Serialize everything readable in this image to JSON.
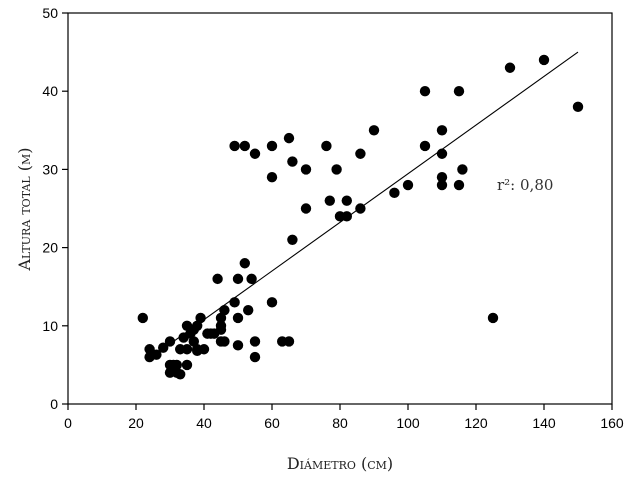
{
  "chart_data": {
    "type": "scatter",
    "title": "",
    "xlabel": "Diámetro (cm)",
    "ylabel": "Altura total (m)",
    "xlim": [
      0,
      160
    ],
    "ylim": [
      0,
      50
    ],
    "xticks": [
      0,
      20,
      40,
      60,
      80,
      100,
      120,
      140,
      160
    ],
    "yticks": [
      0,
      10,
      20,
      30,
      40,
      50
    ],
    "grid": false,
    "annotation": "r²: 0,80",
    "fit_line": {
      "x": [
        23,
        150
      ],
      "y": [
        5.5,
        45.0
      ]
    },
    "points": [
      [
        22,
        11
      ],
      [
        24,
        7
      ],
      [
        24,
        6
      ],
      [
        26,
        6.3
      ],
      [
        28,
        7.2
      ],
      [
        30,
        8
      ],
      [
        30,
        5
      ],
      [
        30,
        4
      ],
      [
        31,
        5
      ],
      [
        32,
        4
      ],
      [
        32,
        5
      ],
      [
        33,
        3.8
      ],
      [
        33,
        7
      ],
      [
        34,
        8.5
      ],
      [
        35,
        10
      ],
      [
        35,
        7
      ],
      [
        35,
        5
      ],
      [
        36,
        9
      ],
      [
        37,
        8
      ],
      [
        37,
        9.5
      ],
      [
        38,
        10
      ],
      [
        38,
        7
      ],
      [
        38,
        6.8
      ],
      [
        39,
        11
      ],
      [
        40,
        7
      ],
      [
        41,
        9
      ],
      [
        42,
        9
      ],
      [
        43,
        9
      ],
      [
        44,
        16
      ],
      [
        45,
        9.5
      ],
      [
        45,
        10
      ],
      [
        45,
        11
      ],
      [
        45,
        8
      ],
      [
        46,
        12
      ],
      [
        46,
        8
      ],
      [
        49,
        33
      ],
      [
        49,
        13
      ],
      [
        50,
        16
      ],
      [
        50,
        11
      ],
      [
        50,
        7.5
      ],
      [
        52,
        33
      ],
      [
        52,
        18
      ],
      [
        53,
        12
      ],
      [
        54,
        16
      ],
      [
        55,
        32
      ],
      [
        55,
        8
      ],
      [
        55,
        6
      ],
      [
        60,
        33
      ],
      [
        60,
        29
      ],
      [
        60,
        13
      ],
      [
        63,
        8
      ],
      [
        65,
        34
      ],
      [
        65,
        8
      ],
      [
        66,
        31
      ],
      [
        66,
        21
      ],
      [
        70,
        30
      ],
      [
        70,
        25
      ],
      [
        76,
        33
      ],
      [
        77,
        26
      ],
      [
        79,
        30
      ],
      [
        80,
        24
      ],
      [
        82,
        26
      ],
      [
        82,
        24
      ],
      [
        86,
        32
      ],
      [
        86,
        25
      ],
      [
        90,
        35
      ],
      [
        96,
        27
      ],
      [
        100,
        28
      ],
      [
        105,
        40
      ],
      [
        105,
        33
      ],
      [
        110,
        35
      ],
      [
        110,
        32
      ],
      [
        110,
        29
      ],
      [
        110,
        28
      ],
      [
        115,
        40
      ],
      [
        115,
        28
      ],
      [
        116,
        30
      ],
      [
        125,
        11
      ],
      [
        130,
        43
      ],
      [
        140,
        44
      ],
      [
        150,
        38
      ]
    ]
  }
}
